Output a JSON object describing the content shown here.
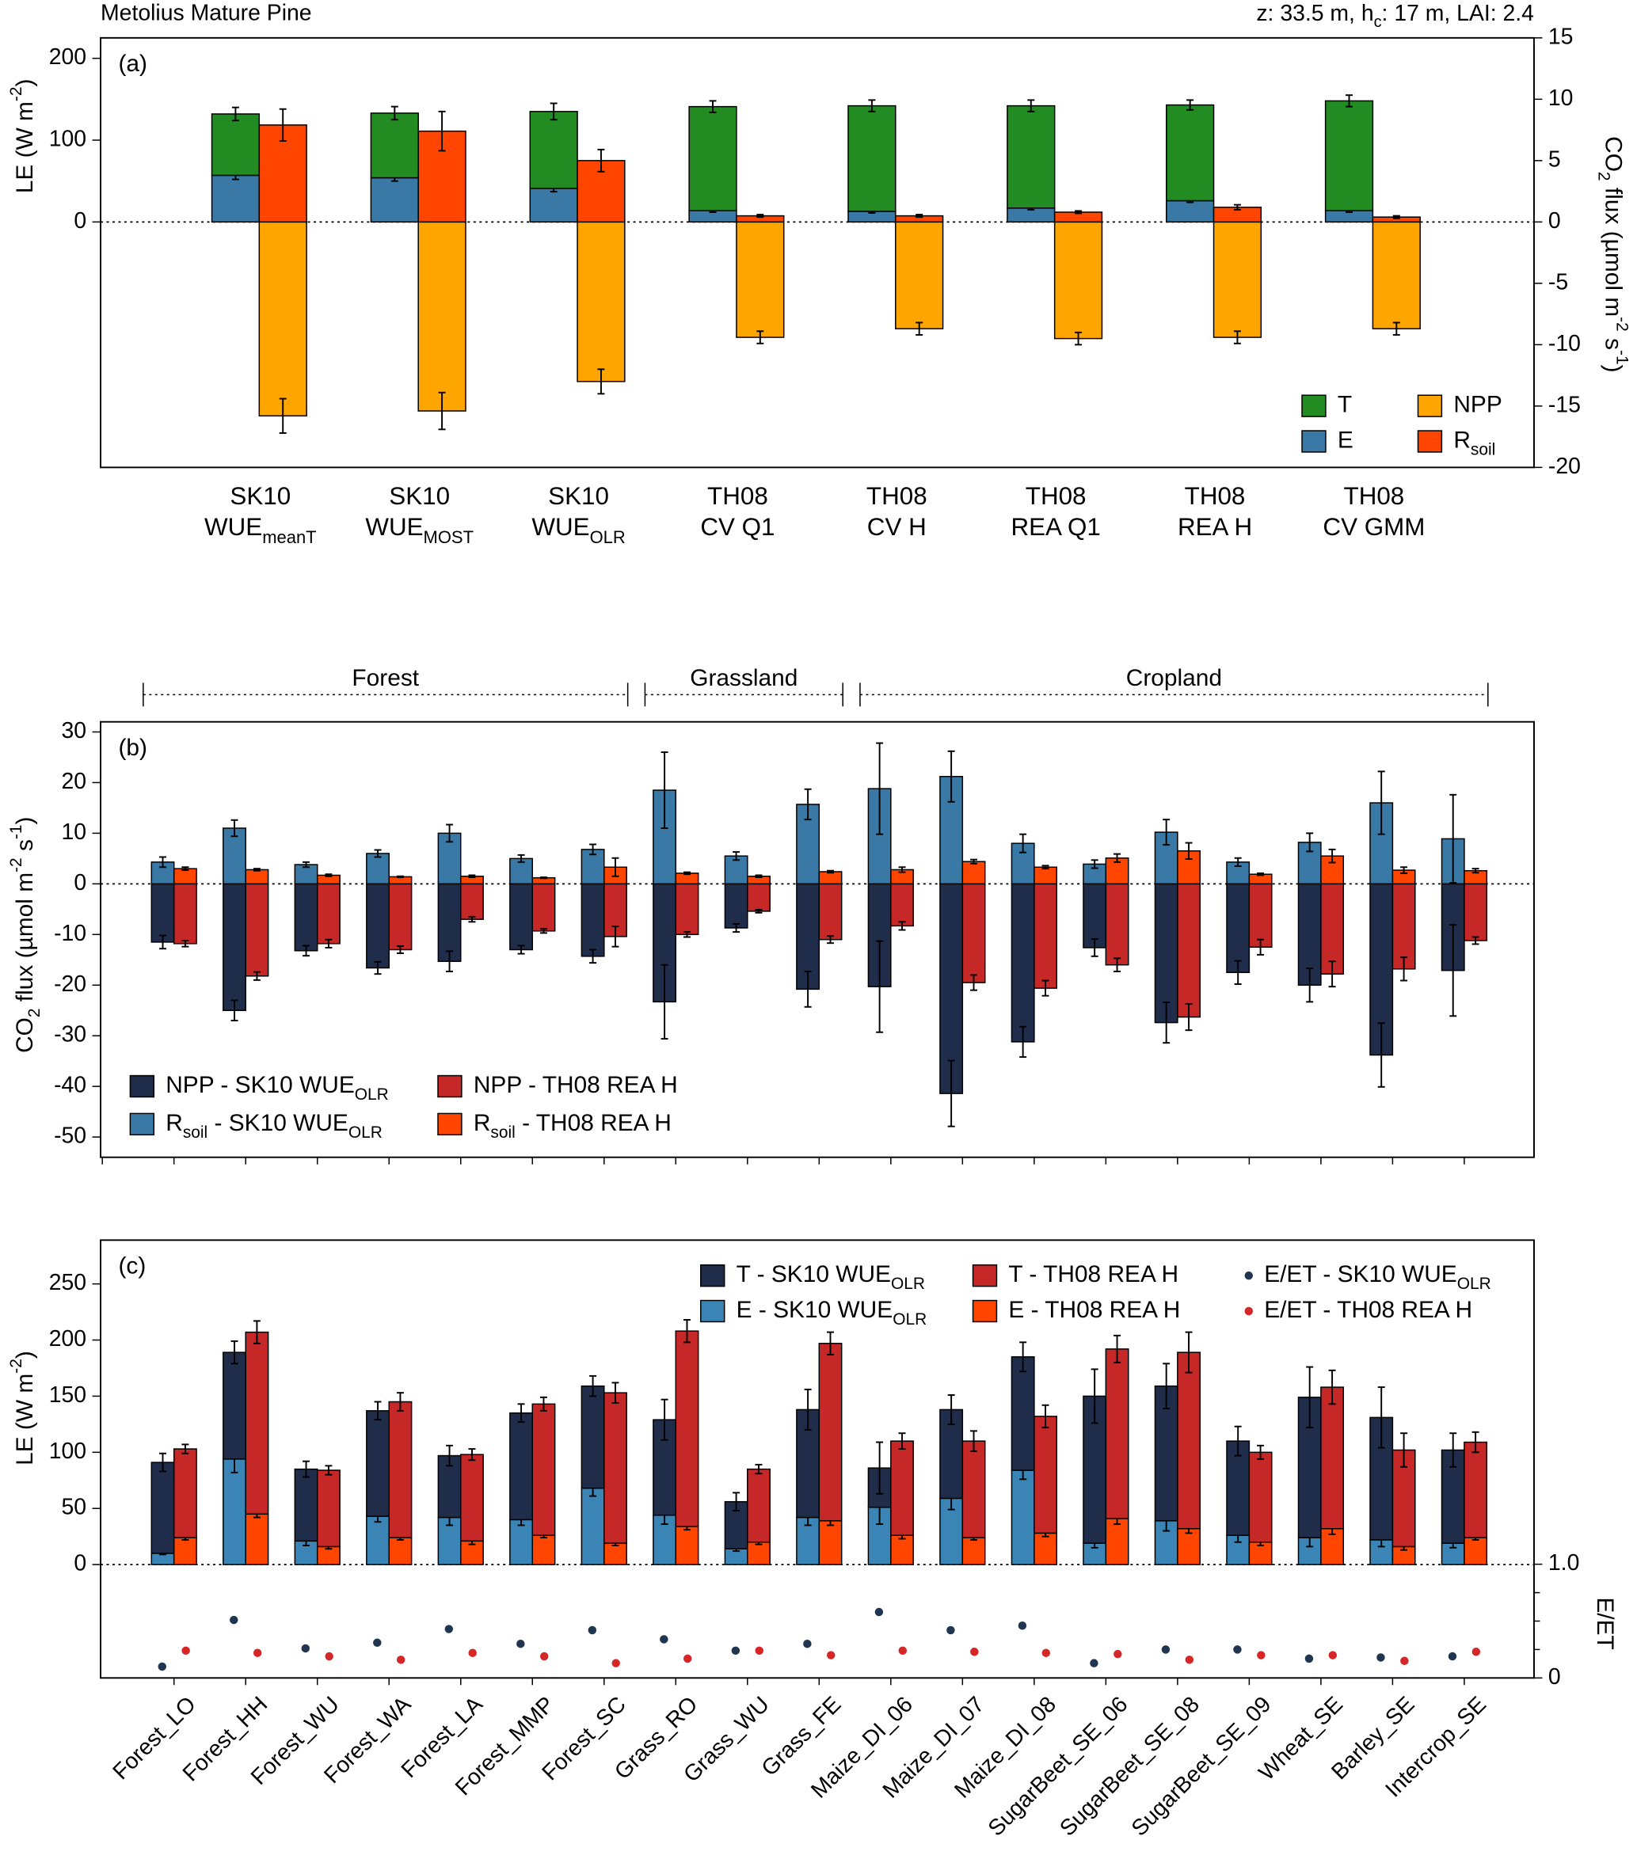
{
  "chart_data": [
    {
      "type": "stacked-bar",
      "panel_label": "(a)",
      "title": "Metolius Mature Pine",
      "subtitle": [
        "z: 33.5 m, h",
        {
          "sub": "c"
        },
        ": 17 m, LAI: 2.4"
      ],
      "ylabel": [
        "LE (W m",
        {
          "sup": "-2"
        },
        ")"
      ],
      "y2label": [
        "CO",
        {
          "sub": "2"
        },
        " flux (µmol m",
        {
          "sup": "-2"
        },
        " s",
        {
          "sup": "-1"
        },
        ")"
      ],
      "categories": [
        [
          [
            "SK10"
          ],
          [
            "WUE",
            {
              "sub": "meanT"
            }
          ]
        ],
        [
          [
            "SK10"
          ],
          [
            "WUE",
            {
              "sub": "MOST"
            }
          ]
        ],
        [
          [
            "SK10"
          ],
          [
            "WUE",
            {
              "sub": "OLR"
            }
          ]
        ],
        [
          [
            "TH08"
          ],
          [
            "CV Q1"
          ]
        ],
        [
          [
            "TH08"
          ],
          [
            "CV H"
          ]
        ],
        [
          [
            "TH08"
          ],
          [
            "REA Q1"
          ]
        ],
        [
          [
            "TH08"
          ],
          [
            "REA H"
          ]
        ],
        [
          [
            "TH08"
          ],
          [
            "CV GMM"
          ]
        ]
      ],
      "ylim": [
        -300,
        225
      ],
      "yticks": [
        0,
        100,
        200
      ],
      "y2lim": [
        -20,
        15
      ],
      "y2ticks": [
        -20,
        -15,
        -10,
        -5,
        0,
        5,
        10,
        15
      ],
      "zero_line": true,
      "bars": [
        {
          "series": [
            {
              "name": [
                "E"
              ],
              "color": "#3a78a5",
              "values": [
                57,
                54,
                41,
                14,
                13,
                17,
                26,
                14
              ],
              "errors": [
                5,
                4,
                4,
                2,
                2,
                2,
                2,
                2
              ]
            },
            {
              "name": [
                "T"
              ],
              "color": "#228b22",
              "values": [
                75,
                79,
                94,
                127,
                129,
                125,
                117,
                134
              ],
              "errors": [
                8,
                8,
                10,
                7,
                7,
                7,
                6,
                7
              ]
            }
          ]
        },
        {
          "series": [
            {
              "name": [
                "NPP"
              ],
              "color": "#ffa500",
              "axis": "y2",
              "values": [
                -15.8,
                -15.4,
                -13.0,
                -9.4,
                -8.7,
                -9.5,
                -9.4,
                -8.7
              ],
              "errors": [
                1.4,
                1.5,
                1.0,
                0.5,
                0.5,
                0.5,
                0.5,
                0.5
              ]
            },
            {
              "name": [
                "R",
                {
                  "sub": "soil"
                }
              ],
              "color": "#ff4500",
              "axis": "y2",
              "values": [
                7.9,
                7.4,
                5.0,
                0.5,
                0.5,
                0.8,
                1.2,
                0.4
              ],
              "errors": [
                1.3,
                1.6,
                0.9,
                0.1,
                0.1,
                0.1,
                0.2,
                0.1
              ]
            }
          ]
        }
      ]
    },
    {
      "type": "stacked-bar",
      "panel_label": "(b)",
      "ylabel": [
        "CO",
        {
          "sub": "2"
        },
        " flux (µmol m",
        {
          "sup": "-2"
        },
        " s",
        {
          "sup": "-1"
        },
        ")"
      ],
      "ylim": [
        -54,
        32
      ],
      "yticks": [
        -50,
        -40,
        -30,
        -20,
        -10,
        0,
        10,
        20,
        30
      ],
      "zero_line": true,
      "groups": [
        {
          "label": "Forest",
          "first": 0,
          "last": 6
        },
        {
          "label": "Grassland",
          "first": 7,
          "last": 9
        },
        {
          "label": "Cropland",
          "first": 10,
          "last": 18
        }
      ],
      "bars": [
        {
          "series": [
            {
              "name": [
                "NPP - SK10 WUE",
                {
                  "sub": "OLR"
                }
              ],
              "color": "#1f2d4b",
              "values": [
                -11.5,
                -25,
                -13.2,
                -16.6,
                -15.3,
                -13,
                -14.3,
                -23.3,
                -8.7,
                -20.8,
                -20.3,
                -41.4,
                -31.2,
                -12.6,
                -27.4,
                -17.5,
                -20,
                -33.8,
                -17.1
              ],
              "errors": [
                1.3,
                2,
                1,
                1.2,
                2,
                0.8,
                1.3,
                7.3,
                0.8,
                3.5,
                9,
                6.5,
                3,
                1.7,
                4,
                2.3,
                3.3,
                6.3,
                9
              ]
            },
            {
              "name": [
                "R",
                {
                  "sub": "soil"
                },
                " - SK10 WUE",
                {
                  "sub": "OLR"
                }
              ],
              "color": "#3a78a5",
              "values": [
                4.3,
                11,
                3.8,
                6,
                10,
                5,
                6.8,
                18.5,
                5.5,
                15.7,
                18.8,
                21.2,
                8,
                3.9,
                10.2,
                4.3,
                8.2,
                16,
                8.9
              ],
              "errors": [
                1,
                1.6,
                0.5,
                0.7,
                1.7,
                0.7,
                1,
                7.5,
                0.8,
                3,
                9,
                5,
                1.8,
                0.8,
                2.5,
                0.8,
                1.8,
                6.2,
                8.7
              ]
            }
          ]
        },
        {
          "series": [
            {
              "name": [
                "NPP - TH08 REA H"
              ],
              "color": "#c62828",
              "values": [
                -11.8,
                -18.2,
                -11.8,
                -13,
                -7,
                -9.3,
                -10.4,
                -10,
                -5.4,
                -11,
                -8.3,
                -19.5,
                -20.6,
                -16,
                -26.3,
                -12.5,
                -17.8,
                -16.8,
                -11.2
              ],
              "errors": [
                0.6,
                0.8,
                0.8,
                0.7,
                0.5,
                0.4,
                2,
                0.5,
                0.3,
                0.7,
                0.8,
                1.5,
                1.5,
                1.3,
                2.6,
                1.5,
                2.5,
                2.3,
                0.7
              ]
            },
            {
              "name": [
                "R",
                {
                  "sub": "soil"
                },
                " - TH08 REA H"
              ],
              "color": "#ff4500",
              "values": [
                3.0,
                2.8,
                1.7,
                1.4,
                1.5,
                1.2,
                3.3,
                2.1,
                1.5,
                2.4,
                2.8,
                4.4,
                3.3,
                5.1,
                6.5,
                1.9,
                5.5,
                2.7,
                2.6
              ],
              "errors": [
                0.3,
                0.2,
                0.2,
                0.1,
                0.2,
                0.1,
                1.8,
                0.2,
                0.2,
                0.2,
                0.5,
                0.4,
                0.3,
                0.8,
                1.6,
                0.2,
                1.3,
                0.6,
                0.4
              ]
            }
          ]
        }
      ]
    },
    {
      "type": "stacked-bar",
      "panel_label": "(c)",
      "ylabel": [
        "LE (W m",
        {
          "sup": "-2"
        },
        ")"
      ],
      "y2label": [
        "E/ET"
      ],
      "categories": [
        "Forest_LO",
        "Forest_HH",
        "Forest_WU",
        "Forest_WA",
        "Forest_LA",
        "Forest_MMP",
        "Forest_SC",
        "Grass_RO",
        "Grass_WU",
        "Grass_FE",
        "Maize_DI_06",
        "Maize_DI_07",
        "Maize_DI_08",
        "SugarBeet_SE_06",
        "SugarBeet_SE_08",
        "SugarBeet_SE_09",
        "Wheat_SE",
        "Barley_SE",
        "Intercrop_SE"
      ],
      "ylim": [
        -101,
        289
      ],
      "yticks": [
        0,
        50,
        100,
        150,
        200,
        250
      ],
      "y2lim": [
        0,
        3.85
      ],
      "y2ticks": [
        0,
        {
          "value": 1,
          "label": "1.0"
        }
      ],
      "y2minor": [
        0.25,
        0.5,
        0.75
      ],
      "zero_line": true,
      "bars": [
        {
          "series": [
            {
              "name": [
                "E - SK10 WUE",
                {
                  "sub": "OLR"
                }
              ],
              "color": "#3a85b5",
              "values": [
                10,
                94,
                21,
                43,
                42,
                40,
                68,
                44,
                14,
                42,
                51,
                59,
                84,
                19,
                39,
                26,
                24,
                22,
                19
              ],
              "errors": [
                1,
                12,
                4,
                5,
                7,
                5,
                7,
                8,
                2,
                7,
                15,
                10,
                8,
                4,
                9,
                6,
                8,
                6,
                4
              ]
            },
            {
              "name": [
                "T - SK10 WUE",
                {
                  "sub": "OLR"
                }
              ],
              "color": "#1f2d4b",
              "values": [
                81,
                95,
                64,
                94,
                55,
                95,
                91,
                85,
                42,
                96,
                35,
                79,
                101,
                131,
                120,
                84,
                125,
                109,
                83
              ],
              "errors": [
                8,
                10,
                7,
                8,
                9,
                8,
                9,
                18,
                8,
                18,
                23,
                13,
                13,
                24,
                20,
                13,
                27,
                27,
                15
              ]
            }
          ]
        },
        {
          "series": [
            {
              "name": [
                "E - TH08 REA H"
              ],
              "color": "#ff4500",
              "values": [
                24,
                45,
                16,
                24,
                21,
                26,
                19,
                34,
                20,
                39,
                26,
                24,
                28,
                41,
                32,
                20,
                32,
                16,
                24
              ],
              "errors": [
                2,
                3,
                2,
                2,
                3,
                2,
                2,
                3,
                2,
                4,
                3,
                2,
                3,
                5,
                4,
                3,
                5,
                3,
                2
              ]
            },
            {
              "name": [
                "T - TH08 REA H"
              ],
              "color": "#c62828",
              "values": [
                79,
                162,
                68,
                121,
                77,
                117,
                134,
                174,
                65,
                158,
                84,
                86,
                104,
                151,
                157,
                80,
                126,
                86,
                85
              ],
              "errors": [
                4,
                10,
                4,
                8,
                5,
                6,
                9,
                10,
                4,
                10,
                7,
                9,
                10,
                12,
                18,
                6,
                15,
                15,
                9
              ]
            }
          ]
        }
      ],
      "points": [
        {
          "name": [
            "E/ET - SK10 WUE",
            {
              "sub": "OLR"
            }
          ],
          "color": "#1f3550",
          "axis": "y2",
          "values": [
            0.1,
            0.51,
            0.26,
            0.31,
            0.43,
            0.3,
            0.42,
            0.34,
            0.24,
            0.3,
            0.58,
            0.42,
            0.46,
            0.13,
            0.25,
            0.25,
            0.17,
            0.18,
            0.19
          ]
        },
        {
          "name": [
            "E/ET - TH08 REA H"
          ],
          "color": "#d62728",
          "axis": "y2",
          "values": [
            0.24,
            0.22,
            0.19,
            0.16,
            0.22,
            0.19,
            0.13,
            0.17,
            0.24,
            0.2,
            0.24,
            0.23,
            0.22,
            0.21,
            0.16,
            0.2,
            0.2,
            0.15,
            0.23
          ]
        }
      ]
    }
  ]
}
